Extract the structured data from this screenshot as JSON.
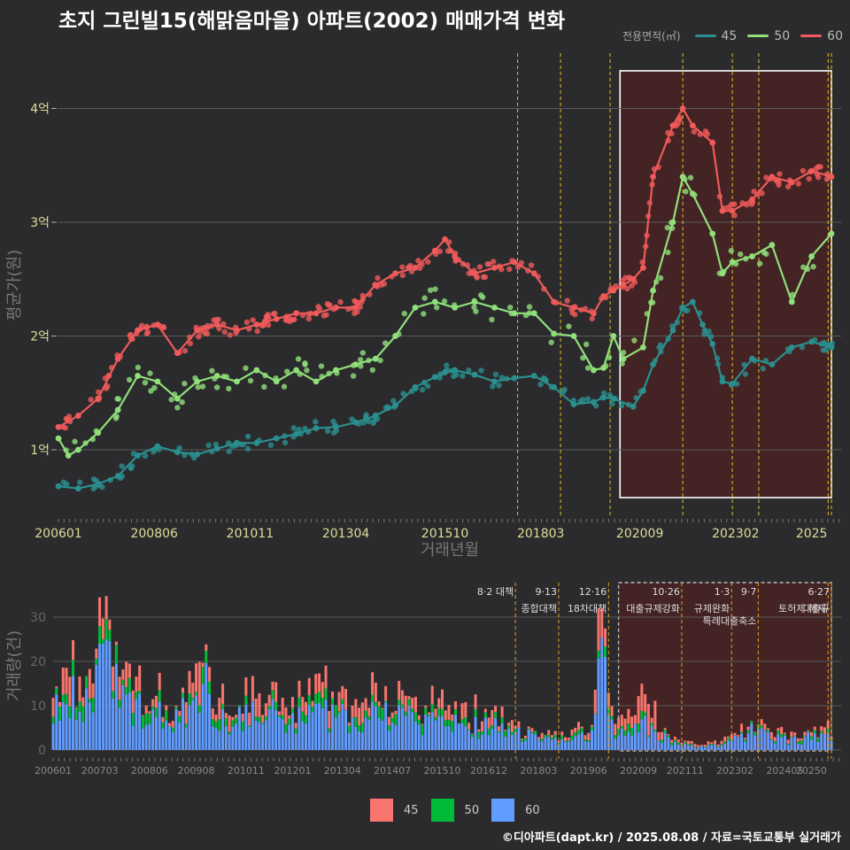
{
  "title": "초지 그린빌15(해맑음마을) 아파트(2002) 매매가격 변화",
  "footer": "©디아파트(dapt.kr) / 2025.08.08 / 자료=국토교통부 실거래가",
  "colors": {
    "s45": "#2a8f8f",
    "s50": "#90e07a",
    "s60": "#f05a5a",
    "bar45": "#f8766d",
    "bar50": "#00ba38",
    "bar60": "#619cff",
    "policy": "#e0c020"
  },
  "chart_data": [
    {
      "type": "line",
      "title": "초지 그린빌15(해맑음마을) 아파트(2002) 매매가격 변화",
      "xlabel": "거래년월",
      "ylabel": "평균가(원)",
      "x_ticks": [
        "200601",
        "200806",
        "201011",
        "201304",
        "201510",
        "201803",
        "202009",
        "202302",
        "2025"
      ],
      "y_ticks": [
        "1억",
        "2억",
        "3억",
        "4억"
      ],
      "ylim": [
        0.6,
        4.4
      ],
      "legend_title": "전용면적(㎡)",
      "legend_position": "top-right",
      "highlight_range": [
        "202003",
        "202507"
      ],
      "policy_lines": [
        "201708",
        "201809",
        "201912",
        "202110",
        "202301",
        "202309",
        "202506",
        "202507"
      ],
      "series": [
        {
          "name": "45",
          "points": [
            [
              2006.0,
              0.68
            ],
            [
              2006.5,
              0.66
            ],
            [
              2007.0,
              0.7
            ],
            [
              2007.5,
              0.77
            ],
            [
              2008.0,
              0.95
            ],
            [
              2008.5,
              1.03
            ],
            [
              2009.0,
              0.98
            ],
            [
              2009.5,
              0.96
            ],
            [
              2010.0,
              1.01
            ],
            [
              2010.5,
              1.06
            ],
            [
              2011.0,
              1.06
            ],
            [
              2011.5,
              1.1
            ],
            [
              2012.0,
              1.14
            ],
            [
              2012.5,
              1.19
            ],
            [
              2013.0,
              1.2
            ],
            [
              2013.5,
              1.24
            ],
            [
              2014.0,
              1.3
            ],
            [
              2014.5,
              1.39
            ],
            [
              2015.0,
              1.55
            ],
            [
              2015.5,
              1.64
            ],
            [
              2015.75,
              1.68
            ],
            [
              2016.0,
              1.7
            ],
            [
              2016.5,
              1.66
            ],
            [
              2017.0,
              1.6
            ],
            [
              2017.5,
              1.63
            ],
            [
              2018.0,
              1.65
            ],
            [
              2018.5,
              1.55
            ],
            [
              2019.0,
              1.4
            ],
            [
              2019.5,
              1.42
            ],
            [
              2019.75,
              1.46
            ],
            [
              2020.0,
              1.45
            ],
            [
              2020.5,
              1.38
            ],
            [
              2020.75,
              1.52
            ],
            [
              2021.0,
              1.75
            ],
            [
              2021.5,
              2.05
            ],
            [
              2021.75,
              2.25
            ],
            [
              2022.0,
              2.3
            ],
            [
              2022.25,
              2.1
            ],
            [
              2022.5,
              1.93
            ],
            [
              2022.75,
              1.6
            ],
            [
              2023.0,
              1.58
            ],
            [
              2023.5,
              1.8
            ],
            [
              2024.0,
              1.75
            ],
            [
              2024.5,
              1.9
            ],
            [
              2025.0,
              1.95
            ],
            [
              2025.5,
              1.9
            ]
          ]
        },
        {
          "name": "50",
          "points": [
            [
              2006.0,
              1.1
            ],
            [
              2006.25,
              0.95
            ],
            [
              2006.5,
              1.0
            ],
            [
              2007.0,
              1.15
            ],
            [
              2007.5,
              1.35
            ],
            [
              2008.0,
              1.65
            ],
            [
              2008.5,
              1.6
            ],
            [
              2009.0,
              1.45
            ],
            [
              2009.5,
              1.6
            ],
            [
              2010.0,
              1.65
            ],
            [
              2010.5,
              1.6
            ],
            [
              2011.0,
              1.7
            ],
            [
              2011.5,
              1.6
            ],
            [
              2012.0,
              1.7
            ],
            [
              2012.5,
              1.6
            ],
            [
              2013.0,
              1.7
            ],
            [
              2013.5,
              1.75
            ],
            [
              2014.0,
              1.8
            ],
            [
              2014.5,
              2.0
            ],
            [
              2015.0,
              2.25
            ],
            [
              2015.5,
              2.3
            ],
            [
              2016.0,
              2.25
            ],
            [
              2016.5,
              2.3
            ],
            [
              2017.0,
              2.25
            ],
            [
              2017.5,
              2.2
            ],
            [
              2018.0,
              2.2
            ],
            [
              2018.5,
              2.02
            ],
            [
              2019.0,
              2.0
            ],
            [
              2019.5,
              1.7
            ],
            [
              2019.75,
              1.72
            ],
            [
              2020.0,
              2.0
            ],
            [
              2020.25,
              1.8
            ],
            [
              2020.75,
              1.9
            ],
            [
              2021.0,
              2.4
            ],
            [
              2021.5,
              3.0
            ],
            [
              2021.75,
              3.4
            ],
            [
              2022.0,
              3.25
            ],
            [
              2022.5,
              2.9
            ],
            [
              2022.75,
              2.55
            ],
            [
              2023.0,
              2.65
            ],
            [
              2023.5,
              2.7
            ],
            [
              2024.0,
              2.8
            ],
            [
              2024.5,
              2.3
            ],
            [
              2025.0,
              2.7
            ],
            [
              2025.5,
              2.9
            ]
          ]
        },
        {
          "name": "60",
          "points": [
            [
              2006.0,
              1.2
            ],
            [
              2006.5,
              1.3
            ],
            [
              2007.0,
              1.45
            ],
            [
              2007.5,
              1.8
            ],
            [
              2008.0,
              2.05
            ],
            [
              2008.5,
              2.1
            ],
            [
              2009.0,
              1.85
            ],
            [
              2009.5,
              2.05
            ],
            [
              2010.0,
              2.1
            ],
            [
              2010.5,
              2.05
            ],
            [
              2011.0,
              2.1
            ],
            [
              2011.5,
              2.15
            ],
            [
              2012.0,
              2.2
            ],
            [
              2012.5,
              2.2
            ],
            [
              2013.0,
              2.25
            ],
            [
              2013.5,
              2.25
            ],
            [
              2014.0,
              2.45
            ],
            [
              2014.5,
              2.55
            ],
            [
              2015.0,
              2.6
            ],
            [
              2015.5,
              2.75
            ],
            [
              2015.75,
              2.85
            ],
            [
              2016.0,
              2.7
            ],
            [
              2016.5,
              2.55
            ],
            [
              2017.0,
              2.6
            ],
            [
              2017.5,
              2.65
            ],
            [
              2018.0,
              2.55
            ],
            [
              2018.5,
              2.3
            ],
            [
              2019.0,
              2.25
            ],
            [
              2019.5,
              2.2
            ],
            [
              2019.75,
              2.35
            ],
            [
              2020.0,
              2.4
            ],
            [
              2020.25,
              2.45
            ],
            [
              2020.5,
              2.5
            ],
            [
              2020.75,
              2.6
            ],
            [
              2021.0,
              3.4
            ],
            [
              2021.5,
              3.85
            ],
            [
              2021.75,
              4.0
            ],
            [
              2022.0,
              3.85
            ],
            [
              2022.5,
              3.7
            ],
            [
              2022.75,
              3.1
            ],
            [
              2023.0,
              3.1
            ],
            [
              2023.5,
              3.2
            ],
            [
              2024.0,
              3.4
            ],
            [
              2024.5,
              3.35
            ],
            [
              2025.0,
              3.45
            ],
            [
              2025.5,
              3.4
            ]
          ]
        }
      ]
    },
    {
      "type": "bar",
      "stacked": true,
      "ylabel": "거래량(건)",
      "x_ticks": [
        "200601",
        "200703",
        "200806",
        "200908",
        "201011",
        "201201",
        "201304",
        "201407",
        "201510",
        "201612",
        "201803",
        "201906",
        "202009",
        "202111",
        "202302",
        "202405",
        "20250"
      ],
      "y_ticks": [
        "0",
        "10",
        "20",
        "30"
      ],
      "ylim": [
        0,
        38
      ],
      "annotations": [
        {
          "at": "201708",
          "line1": "8·2 대책",
          "line2": ""
        },
        {
          "at": "201809",
          "line1": "9·13",
          "line2": "종합대책"
        },
        {
          "at": "201912",
          "line1": "12·16",
          "line2": "18차대책"
        },
        {
          "at": "202110",
          "line1": "10·26",
          "line2": "대출규제강화"
        },
        {
          "at": "202301",
          "line1": "1·3",
          "line2": "규제완화"
        },
        {
          "at": "202309",
          "line1": "9·7",
          "line2": "특례대출축소"
        },
        {
          "at": "202506",
          "line1": "",
          "line2": "토허제 해제"
        },
        {
          "at": "202507",
          "line1": "6·27",
          "line2": "대출규"
        }
      ],
      "legend_position": "bottom",
      "series_names": [
        "45",
        "50",
        "60"
      ],
      "volume_profile_60": [
        [
          2006.0,
          8
        ],
        [
          2006.5,
          12
        ],
        [
          2007.0,
          10
        ],
        [
          2007.25,
          22
        ],
        [
          2007.5,
          16
        ],
        [
          2008.0,
          9
        ],
        [
          2008.5,
          8
        ],
        [
          2009.0,
          6
        ],
        [
          2009.5,
          10
        ],
        [
          2009.75,
          16
        ],
        [
          2010.0,
          8
        ],
        [
          2010.5,
          6
        ],
        [
          2011.0,
          9
        ],
        [
          2011.5,
          8
        ],
        [
          2012.0,
          7
        ],
        [
          2012.5,
          7
        ],
        [
          2013.0,
          8
        ],
        [
          2013.5,
          7
        ],
        [
          2014.0,
          8
        ],
        [
          2014.5,
          7
        ],
        [
          2015.0,
          7
        ],
        [
          2015.5,
          6
        ],
        [
          2016.0,
          7
        ],
        [
          2016.5,
          5
        ],
        [
          2017.0,
          5
        ],
        [
          2017.5,
          4
        ],
        [
          2018.0,
          3
        ],
        [
          2018.5,
          2
        ],
        [
          2019.0,
          3
        ],
        [
          2019.5,
          3
        ],
        [
          2019.75,
          20
        ],
        [
          2020.0,
          5
        ],
        [
          2020.5,
          5
        ],
        [
          2020.75,
          7
        ],
        [
          2021.0,
          4
        ],
        [
          2021.5,
          2
        ],
        [
          2022.0,
          1
        ],
        [
          2022.5,
          1
        ],
        [
          2023.0,
          2
        ],
        [
          2023.5,
          4
        ],
        [
          2024.0,
          3
        ],
        [
          2024.5,
          2
        ],
        [
          2025.0,
          3
        ],
        [
          2025.5,
          3
        ]
      ]
    }
  ]
}
